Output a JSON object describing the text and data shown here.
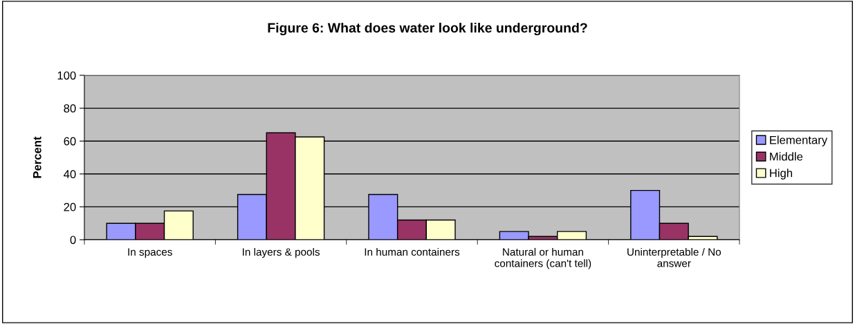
{
  "chart_data": {
    "type": "bar",
    "title": "Figure 6: What does water look like underground?",
    "ylabel": "Percent",
    "categories": [
      "In spaces",
      "In layers & pools",
      "In human containers",
      "Natural or human containers (can't tell)",
      "Uninterpretable / No answer"
    ],
    "series": [
      {
        "name": "Elementary",
        "color": "#9999ff",
        "values": [
          10,
          27.5,
          27.5,
          5,
          30
        ]
      },
      {
        "name": "Middle",
        "color": "#993366",
        "values": [
          10,
          65,
          12,
          2,
          10
        ]
      },
      {
        "name": "High",
        "color": "#ffffcc",
        "values": [
          17.5,
          62.5,
          12,
          5,
          2
        ]
      }
    ],
    "ylim": [
      0,
      100
    ],
    "yticks": [
      0,
      20,
      40,
      60,
      80,
      100
    ],
    "grid": "y",
    "legend": "right"
  }
}
